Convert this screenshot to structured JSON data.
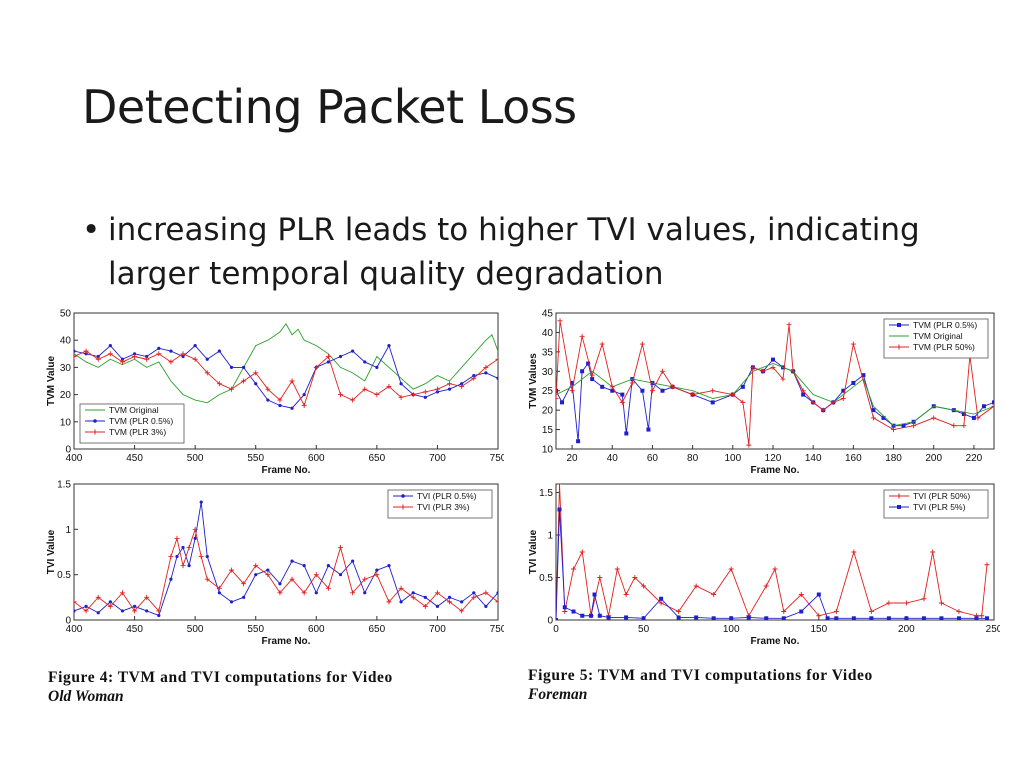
{
  "slide": {
    "title": "Detecting Packet Loss",
    "bullet": "increasing PLR leads to higher TVI values, indicating larger temporal quality degradation",
    "bullet_marker": "•"
  },
  "captions": {
    "fig4": {
      "label": "Figure 4:",
      "text": "TVM and TVI computations for Video",
      "video": "Old Woman"
    },
    "fig5": {
      "label": "Figure 5:",
      "text": "TVM and TVI computations for Video",
      "video": "Foreman"
    }
  },
  "chart_data": [
    {
      "id": "fig4-tvm",
      "type": "line",
      "title": "",
      "xlabel": "Frame No.",
      "ylabel": "TVM Value",
      "xlim": [
        400,
        750
      ],
      "ylim": [
        0,
        50
      ],
      "xticks": [
        400,
        450,
        500,
        550,
        600,
        650,
        700,
        750
      ],
      "yticks": [
        0,
        10,
        20,
        30,
        40,
        50
      ],
      "legend_position": "bottom-left",
      "series": [
        {
          "name": "TVM Original",
          "color": "#2ca02c",
          "marker": "none",
          "x": [
            400,
            410,
            420,
            430,
            440,
            450,
            460,
            470,
            480,
            490,
            500,
            510,
            520,
            530,
            540,
            550,
            560,
            570,
            575,
            580,
            585,
            590,
            600,
            610,
            620,
            630,
            640,
            650,
            660,
            670,
            680,
            690,
            700,
            710,
            720,
            730,
            740,
            745,
            750
          ],
          "y": [
            35,
            32,
            30,
            33,
            31,
            33,
            30,
            32,
            25,
            20,
            18,
            17,
            20,
            22,
            30,
            38,
            40,
            43,
            46,
            42,
            44,
            40,
            38,
            35,
            30,
            28,
            25,
            34,
            30,
            26,
            22,
            24,
            27,
            25,
            30,
            35,
            40,
            42,
            36
          ]
        },
        {
          "name": "TVM (PLR 0.5%)",
          "color": "#1f1fcf",
          "marker": "dot",
          "x": [
            400,
            410,
            420,
            430,
            440,
            450,
            460,
            470,
            480,
            490,
            500,
            510,
            520,
            530,
            540,
            550,
            560,
            570,
            580,
            590,
            600,
            610,
            620,
            630,
            640,
            650,
            660,
            670,
            680,
            690,
            700,
            710,
            720,
            730,
            740,
            750
          ],
          "y": [
            36,
            35,
            34,
            38,
            33,
            35,
            34,
            37,
            36,
            34,
            38,
            33,
            36,
            30,
            30,
            24,
            18,
            16,
            15,
            20,
            30,
            32,
            34,
            36,
            32,
            30,
            38,
            24,
            20,
            19,
            21,
            22,
            24,
            27,
            28,
            26
          ]
        },
        {
          "name": "TVM (PLR 3%)",
          "color": "#e02020",
          "marker": "plus",
          "x": [
            400,
            410,
            420,
            430,
            440,
            450,
            460,
            470,
            480,
            490,
            500,
            510,
            520,
            530,
            540,
            550,
            560,
            570,
            580,
            590,
            600,
            610,
            620,
            630,
            640,
            650,
            660,
            670,
            680,
            690,
            700,
            710,
            720,
            730,
            740,
            750
          ],
          "y": [
            34,
            36,
            33,
            35,
            32,
            34,
            33,
            35,
            32,
            35,
            33,
            28,
            24,
            22,
            25,
            28,
            22,
            18,
            25,
            16,
            30,
            34,
            20,
            18,
            22,
            20,
            23,
            19,
            20,
            21,
            22,
            24,
            23,
            26,
            30,
            33
          ]
        }
      ]
    },
    {
      "id": "fig4-tvi",
      "type": "line",
      "title": "",
      "xlabel": "Frame No.",
      "ylabel": "TVI Value",
      "xlim": [
        400,
        750
      ],
      "ylim": [
        0,
        1.5
      ],
      "xticks": [
        400,
        450,
        500,
        550,
        600,
        650,
        700,
        750
      ],
      "yticks": [
        0,
        0.5,
        1,
        1.5
      ],
      "legend_position": "top-right",
      "series": [
        {
          "name": "TVI (PLR 0.5%)",
          "color": "#1f1fcf",
          "marker": "dot",
          "x": [
            400,
            410,
            420,
            430,
            440,
            450,
            460,
            470,
            480,
            485,
            490,
            495,
            500,
            505,
            510,
            520,
            530,
            540,
            550,
            560,
            570,
            580,
            590,
            600,
            610,
            620,
            630,
            640,
            650,
            660,
            670,
            680,
            690,
            700,
            710,
            720,
            730,
            740,
            750
          ],
          "y": [
            0.1,
            0.15,
            0.08,
            0.2,
            0.1,
            0.15,
            0.1,
            0.05,
            0.45,
            0.7,
            0.8,
            0.6,
            0.9,
            1.3,
            0.7,
            0.3,
            0.2,
            0.25,
            0.5,
            0.55,
            0.4,
            0.65,
            0.6,
            0.3,
            0.6,
            0.5,
            0.65,
            0.3,
            0.55,
            0.6,
            0.2,
            0.3,
            0.25,
            0.15,
            0.25,
            0.2,
            0.3,
            0.15,
            0.3
          ]
        },
        {
          "name": "TVI (PLR 3%)",
          "color": "#e02020",
          "marker": "plus",
          "x": [
            400,
            410,
            420,
            430,
            440,
            450,
            460,
            470,
            480,
            485,
            490,
            495,
            500,
            505,
            510,
            520,
            530,
            540,
            550,
            560,
            570,
            580,
            590,
            600,
            610,
            620,
            630,
            640,
            650,
            660,
            670,
            680,
            690,
            700,
            710,
            720,
            730,
            740,
            750
          ],
          "y": [
            0.2,
            0.1,
            0.25,
            0.15,
            0.3,
            0.1,
            0.25,
            0.1,
            0.7,
            0.9,
            0.6,
            0.8,
            1.0,
            0.7,
            0.45,
            0.35,
            0.55,
            0.4,
            0.6,
            0.5,
            0.3,
            0.45,
            0.3,
            0.5,
            0.35,
            0.8,
            0.3,
            0.45,
            0.5,
            0.2,
            0.35,
            0.25,
            0.15,
            0.3,
            0.2,
            0.1,
            0.25,
            0.3,
            0.2
          ]
        }
      ]
    },
    {
      "id": "fig5-tvm",
      "type": "line",
      "title": "",
      "xlabel": "Frame No.",
      "ylabel": "TVM Values",
      "xlim": [
        12,
        230
      ],
      "ylim": [
        10,
        45
      ],
      "xticks": [
        20,
        40,
        60,
        80,
        100,
        120,
        140,
        160,
        180,
        200,
        220
      ],
      "yticks": [
        10,
        15,
        20,
        25,
        30,
        35,
        40,
        45
      ],
      "legend_position": "top-right",
      "series": [
        {
          "name": "TVM (PLR 0.5%)",
          "color": "#1f1fcf",
          "marker": "square",
          "x": [
            12,
            15,
            20,
            23,
            25,
            28,
            30,
            35,
            40,
            45,
            47,
            50,
            55,
            58,
            60,
            65,
            70,
            80,
            90,
            100,
            105,
            110,
            115,
            120,
            125,
            130,
            135,
            140,
            145,
            150,
            155,
            160,
            165,
            170,
            175,
            180,
            185,
            190,
            200,
            210,
            215,
            220,
            225,
            230
          ],
          "y": [
            25,
            22,
            27,
            12,
            30,
            32,
            28,
            26,
            25,
            24,
            14,
            28,
            25,
            15,
            27,
            25,
            26,
            24,
            22,
            24,
            26,
            31,
            30,
            33,
            31,
            30,
            24,
            22,
            20,
            22,
            25,
            27,
            29,
            20,
            18,
            16,
            16,
            17,
            21,
            20,
            19,
            18,
            21,
            22
          ]
        },
        {
          "name": "TVM Original",
          "color": "#2ca02c",
          "marker": "none",
          "x": [
            12,
            20,
            30,
            40,
            50,
            60,
            70,
            80,
            90,
            100,
            110,
            120,
            130,
            140,
            150,
            160,
            165,
            170,
            180,
            190,
            200,
            210,
            220,
            230
          ],
          "y": [
            24,
            26,
            30,
            26,
            28,
            27,
            26,
            25,
            23,
            24,
            30,
            32,
            30,
            24,
            22,
            26,
            28,
            21,
            16,
            17,
            21,
            20,
            19,
            21
          ]
        },
        {
          "name": "TVM (PLR 50%)",
          "color": "#e02020",
          "marker": "plus",
          "x": [
            12,
            14,
            20,
            25,
            30,
            35,
            40,
            45,
            50,
            55,
            60,
            65,
            70,
            80,
            90,
            100,
            105,
            108,
            110,
            115,
            120,
            125,
            128,
            130,
            135,
            140,
            145,
            150,
            155,
            160,
            170,
            180,
            190,
            200,
            210,
            215,
            218,
            222,
            230
          ],
          "y": [
            23,
            43,
            25,
            39,
            29,
            37,
            26,
            22,
            27,
            37,
            25,
            30,
            26,
            24,
            25,
            24,
            22,
            11,
            31,
            30,
            31,
            28,
            42,
            30,
            25,
            22,
            20,
            22,
            23,
            37,
            18,
            15,
            16,
            18,
            16,
            16,
            34,
            18,
            21
          ]
        }
      ]
    },
    {
      "id": "fig5-tvi",
      "type": "line",
      "title": "",
      "xlabel": "Frame No.",
      "ylabel": "TVI Value",
      "xlim": [
        0,
        250
      ],
      "ylim": [
        0,
        1.6
      ],
      "xticks": [
        0,
        50,
        100,
        150,
        200,
        250
      ],
      "yticks": [
        0,
        0.5,
        1,
        1.5
      ],
      "legend_position": "top-right",
      "series": [
        {
          "name": "TVI (PLR 50%)",
          "color": "#e02020",
          "marker": "plus",
          "x": [
            0,
            2,
            5,
            10,
            15,
            20,
            25,
            30,
            35,
            40,
            45,
            50,
            60,
            70,
            80,
            90,
            100,
            110,
            120,
            125,
            130,
            140,
            150,
            160,
            170,
            180,
            190,
            200,
            210,
            215,
            220,
            230,
            240,
            243,
            246
          ],
          "y": [
            0.0,
            1.6,
            0.1,
            0.6,
            0.8,
            0.05,
            0.5,
            0.05,
            0.6,
            0.3,
            0.5,
            0.4,
            0.2,
            0.1,
            0.4,
            0.3,
            0.6,
            0.05,
            0.4,
            0.6,
            0.1,
            0.3,
            0.05,
            0.1,
            0.8,
            0.1,
            0.2,
            0.2,
            0.25,
            0.8,
            0.2,
            0.1,
            0.05,
            0.05,
            0.65
          ]
        },
        {
          "name": "TVI (PLR 5%)",
          "color": "#1f1fcf",
          "marker": "square",
          "x": [
            0,
            2,
            5,
            10,
            15,
            20,
            22,
            25,
            30,
            40,
            50,
            60,
            70,
            80,
            90,
            100,
            110,
            120,
            130,
            140,
            150,
            155,
            160,
            170,
            180,
            190,
            200,
            210,
            220,
            230,
            240,
            246
          ],
          "y": [
            0.0,
            1.3,
            0.15,
            0.1,
            0.05,
            0.05,
            0.3,
            0.05,
            0.03,
            0.03,
            0.02,
            0.25,
            0.03,
            0.03,
            0.02,
            0.02,
            0.03,
            0.02,
            0.02,
            0.1,
            0.3,
            0.02,
            0.02,
            0.02,
            0.02,
            0.02,
            0.02,
            0.02,
            0.02,
            0.02,
            0.02,
            0.02
          ]
        }
      ]
    }
  ]
}
